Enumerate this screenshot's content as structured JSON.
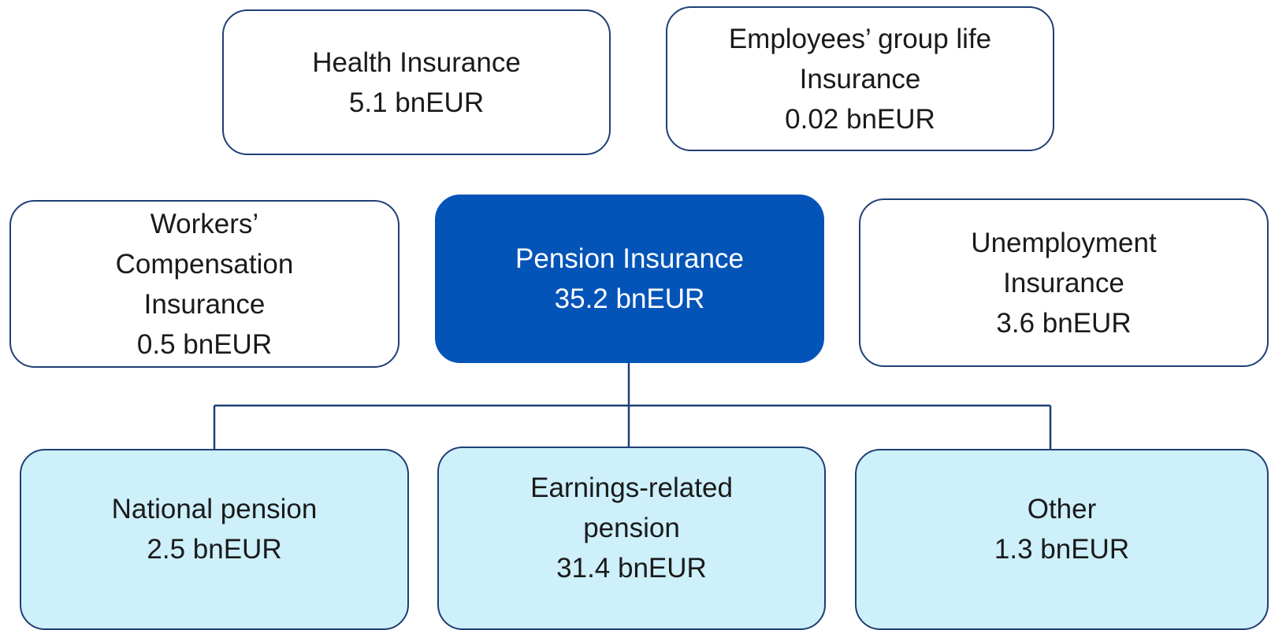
{
  "nodes": [
    {
      "lines": [
        "Health Insurance",
        "5.1 bnEUR"
      ]
    },
    {
      "lines": [
        "Employees’ group life",
        "Insurance",
        "0.02 bnEUR"
      ]
    },
    {
      "lines": [
        "Workers’",
        "Compensation",
        "Insurance",
        "0.5 bnEUR"
      ]
    },
    {
      "lines": [
        "Pension Insurance",
        "35.2 bnEUR"
      ]
    },
    {
      "lines": [
        "Unemployment",
        "Insurance",
        "3.6 bnEUR"
      ]
    },
    {
      "lines": [
        "National pension",
        "2.5 bnEUR"
      ]
    },
    {
      "lines": [
        "Earnings-related",
        "pension",
        "31.4 bnEUR"
      ]
    },
    {
      "lines": [
        "Other",
        "1.3 bnEUR"
      ]
    }
  ]
}
